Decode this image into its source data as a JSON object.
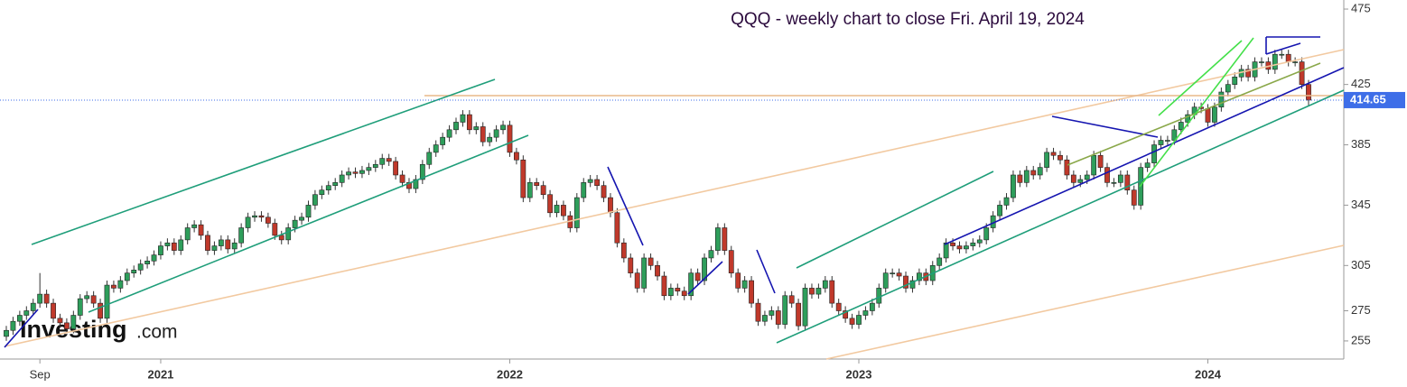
{
  "chart_data": {
    "type": "candlestick",
    "title": "QQQ - weekly chart to close Fri. April 19, 2024",
    "logo_name": "Investing",
    "logo_suffix": ".com",
    "up_color": "#2e9e5b",
    "down_color": "#c0392b",
    "last_value": 414.65,
    "ylim": [
      243,
      481
    ],
    "yticks": [
      255,
      275,
      305,
      345,
      385,
      425,
      475
    ],
    "grid": false,
    "categories": [
      null,
      null,
      null,
      null,
      null,
      "Sep",
      null,
      null,
      null,
      null,
      null,
      null,
      null,
      null,
      null,
      null,
      null,
      null,
      null,
      null,
      null,
      null,
      null,
      "2021",
      null,
      null,
      null,
      null,
      null,
      null,
      null,
      null,
      null,
      null,
      null,
      null,
      null,
      null,
      null,
      null,
      null,
      null,
      null,
      null,
      null,
      null,
      null,
      null,
      null,
      null,
      null,
      null,
      null,
      null,
      null,
      null,
      null,
      null,
      null,
      null,
      null,
      null,
      null,
      null,
      null,
      null,
      null,
      null,
      null,
      null,
      null,
      null,
      null,
      null,
      null,
      "2022",
      null,
      null,
      null,
      null,
      null,
      null,
      null,
      null,
      null,
      null,
      null,
      null,
      null,
      null,
      null,
      null,
      null,
      null,
      null,
      null,
      null,
      null,
      null,
      null,
      null,
      null,
      null,
      null,
      null,
      null,
      null,
      null,
      null,
      null,
      null,
      null,
      null,
      null,
      null,
      null,
      null,
      null,
      null,
      null,
      null,
      null,
      null,
      null,
      null,
      null,
      null,
      "2023",
      null,
      null,
      null,
      null,
      null,
      null,
      null,
      null,
      null,
      null,
      null,
      null,
      null,
      null,
      null,
      null,
      null,
      null,
      null,
      null,
      null,
      null,
      null,
      null,
      null,
      null,
      null,
      null,
      null,
      null,
      null,
      null,
      null,
      null,
      null,
      null,
      null,
      null,
      null,
      null,
      null,
      null,
      null,
      null,
      null,
      null,
      null,
      null,
      null,
      null,
      null,
      "2024",
      null,
      null,
      null,
      null,
      null,
      null,
      null,
      null,
      null,
      null,
      null,
      null,
      null,
      null,
      null
    ],
    "open": [
      258,
      262,
      268,
      272,
      275,
      280,
      286,
      280,
      270,
      267,
      263,
      272,
      283,
      285,
      280,
      270,
      292,
      290,
      295,
      300,
      302,
      306,
      308,
      312,
      318,
      320,
      315,
      322,
      330,
      332,
      325,
      315,
      318,
      322,
      316,
      320,
      330,
      337,
      338,
      337,
      333,
      325,
      322,
      330,
      335,
      337,
      345,
      352,
      355,
      358,
      360,
      365,
      367,
      366,
      368,
      370,
      372,
      376,
      374,
      365,
      360,
      356,
      362,
      372,
      380,
      385,
      390,
      395,
      400,
      405,
      395,
      397,
      387,
      390,
      395,
      398,
      380,
      375,
      350,
      360,
      358,
      352,
      340,
      345,
      338,
      330,
      350,
      360,
      362,
      358,
      350,
      340,
      320,
      310,
      300,
      290,
      310,
      305,
      298,
      285,
      290,
      288,
      285,
      300,
      295,
      310,
      315,
      330,
      315,
      300,
      290,
      295,
      280,
      268,
      272,
      275,
      266,
      285,
      280,
      265,
      290,
      286,
      290,
      295,
      280,
      275,
      270,
      266,
      272,
      275,
      280,
      290,
      300,
      300,
      298,
      290,
      295,
      300,
      295,
      305,
      310,
      320,
      318,
      316,
      318,
      320,
      322,
      330,
      338,
      345,
      350,
      365,
      360,
      368,
      365,
      370,
      380,
      378,
      375,
      365,
      360,
      362,
      365,
      378,
      370,
      360,
      360,
      365,
      355,
      345,
      370,
      373,
      385,
      388,
      388,
      395,
      400,
      405,
      410,
      409,
      400,
      410,
      420,
      425,
      430,
      435,
      430,
      440,
      440,
      435,
      445,
      445,
      440,
      440,
      425
    ],
    "high": [
      265,
      271,
      275,
      278,
      283,
      300,
      289,
      283,
      273,
      270,
      275,
      286,
      288,
      288,
      283,
      295,
      295,
      298,
      303,
      305,
      309,
      311,
      315,
      321,
      323,
      323,
      325,
      333,
      335,
      335,
      328,
      321,
      325,
      325,
      323,
      333,
      340,
      341,
      341,
      340,
      336,
      328,
      333,
      338,
      340,
      348,
      355,
      358,
      361,
      363,
      368,
      370,
      370,
      371,
      373,
      375,
      379,
      379,
      377,
      368,
      363,
      365,
      375,
      383,
      388,
      393,
      398,
      403,
      408,
      408,
      400,
      400,
      393,
      398,
      401,
      401,
      383,
      378,
      363,
      363,
      361,
      355,
      348,
      348,
      341,
      353,
      363,
      365,
      365,
      361,
      353,
      343,
      323,
      313,
      303,
      313,
      313,
      308,
      301,
      293,
      293,
      291,
      303,
      303,
      313,
      318,
      333,
      333,
      318,
      303,
      298,
      298,
      283,
      275,
      278,
      278,
      288,
      288,
      283,
      293,
      293,
      293,
      298,
      298,
      283,
      278,
      273,
      275,
      278,
      283,
      293,
      303,
      303,
      303,
      301,
      298,
      303,
      303,
      308,
      313,
      323,
      323,
      321,
      321,
      323,
      325,
      333,
      341,
      348,
      353,
      368,
      368,
      371,
      371,
      373,
      383,
      383,
      381,
      378,
      368,
      365,
      368,
      381,
      381,
      373,
      363,
      368,
      368,
      358,
      373,
      376,
      388,
      391,
      391,
      398,
      403,
      408,
      413,
      413,
      412,
      413,
      423,
      428,
      433,
      438,
      438,
      443,
      443,
      443,
      448,
      448,
      448,
      443,
      443,
      428
    ],
    "low": [
      255,
      259,
      265,
      269,
      272,
      277,
      277,
      267,
      264,
      260,
      260,
      269,
      280,
      277,
      267,
      267,
      287,
      287,
      292,
      297,
      299,
      303,
      305,
      309,
      315,
      312,
      312,
      319,
      327,
      322,
      312,
      312,
      315,
      313,
      313,
      317,
      327,
      334,
      334,
      330,
      322,
      319,
      319,
      327,
      332,
      334,
      342,
      349,
      352,
      355,
      357,
      362,
      363,
      363,
      365,
      367,
      369,
      371,
      362,
      357,
      353,
      353,
      359,
      369,
      377,
      382,
      387,
      392,
      397,
      392,
      392,
      384,
      384,
      387,
      392,
      377,
      372,
      347,
      347,
      355,
      349,
      337,
      337,
      335,
      327,
      327,
      347,
      357,
      355,
      347,
      337,
      317,
      307,
      297,
      287,
      287,
      302,
      295,
      282,
      282,
      285,
      282,
      282,
      292,
      292,
      307,
      312,
      312,
      297,
      287,
      287,
      277,
      265,
      265,
      269,
      263,
      263,
      277,
      262,
      262,
      283,
      283,
      287,
      277,
      272,
      267,
      263,
      263,
      269,
      272,
      277,
      287,
      297,
      295,
      287,
      287,
      292,
      292,
      292,
      302,
      307,
      315,
      313,
      313,
      315,
      317,
      319,
      327,
      335,
      342,
      347,
      357,
      357,
      362,
      362,
      367,
      375,
      372,
      362,
      357,
      357,
      359,
      362,
      367,
      357,
      357,
      357,
      352,
      342,
      342,
      367,
      370,
      382,
      385,
      385,
      392,
      397,
      402,
      406,
      397,
      397,
      407,
      417,
      422,
      427,
      427,
      427,
      437,
      432,
      432,
      442,
      437,
      437,
      422,
      411
    ],
    "close": [
      262,
      268,
      272,
      275,
      280,
      286,
      280,
      270,
      267,
      263,
      272,
      283,
      285,
      280,
      270,
      292,
      290,
      295,
      300,
      302,
      306,
      308,
      312,
      318,
      320,
      315,
      322,
      330,
      332,
      325,
      315,
      318,
      322,
      316,
      320,
      330,
      337,
      338,
      337,
      333,
      325,
      322,
      330,
      335,
      337,
      345,
      352,
      355,
      358,
      360,
      365,
      367,
      366,
      368,
      370,
      372,
      376,
      374,
      365,
      360,
      356,
      362,
      372,
      380,
      385,
      390,
      395,
      400,
      405,
      395,
      397,
      387,
      390,
      395,
      398,
      380,
      375,
      350,
      360,
      358,
      352,
      340,
      345,
      338,
      330,
      350,
      360,
      362,
      358,
      350,
      340,
      320,
      310,
      300,
      290,
      310,
      305,
      298,
      285,
      290,
      288,
      285,
      300,
      295,
      310,
      315,
      330,
      315,
      300,
      290,
      295,
      280,
      268,
      272,
      275,
      266,
      285,
      280,
      265,
      290,
      286,
      290,
      295,
      280,
      275,
      270,
      266,
      272,
      275,
      280,
      290,
      300,
      300,
      298,
      290,
      295,
      300,
      295,
      305,
      310,
      320,
      318,
      316,
      318,
      320,
      322,
      330,
      338,
      345,
      350,
      365,
      360,
      368,
      365,
      370,
      380,
      378,
      375,
      365,
      360,
      362,
      365,
      378,
      370,
      360,
      360,
      365,
      355,
      345,
      370,
      373,
      385,
      388,
      388,
      395,
      400,
      405,
      410,
      409,
      400,
      410,
      420,
      425,
      430,
      435,
      430,
      440,
      440,
      435,
      445,
      445,
      440,
      440,
      425,
      414.65
    ]
  }
}
